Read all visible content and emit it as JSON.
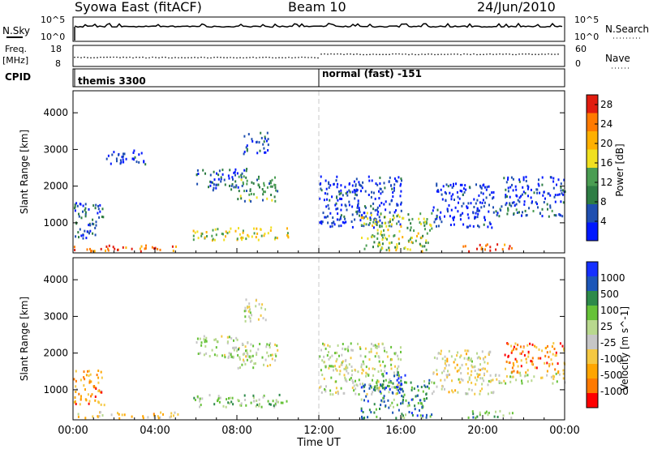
{
  "header": {
    "station": "Syowa East (fitACF)",
    "beam": "Beam 10",
    "date": "24/Jun/2010"
  },
  "panels": {
    "nsky": {
      "label": "N.Sky",
      "ticks": [
        "10^5",
        "10^0"
      ],
      "right_label": "N.Search",
      "right_ticks": [
        "10^5",
        "10^0"
      ]
    },
    "freq": {
      "label": "Freq.",
      "unit": "[MHz]",
      "ticks": [
        "18",
        "8"
      ],
      "right_label": "Nave",
      "right_ticks": [
        "60",
        "0"
      ]
    },
    "cpid": {
      "label": "CPID",
      "segments": [
        {
          "start_hour": 0,
          "text": "themis 3300"
        },
        {
          "start_hour": 12,
          "text": "normal (fast) -151"
        }
      ]
    }
  },
  "colors": {
    "power_scale": [
      "#0018ff",
      "#1f4fb0",
      "#2e7d44",
      "#4a9d52",
      "#f0e020",
      "#ffb000",
      "#ff7a00",
      "#e11c0f"
    ],
    "velocity_scale": [
      "#ff0000",
      "#ff7a00",
      "#ffa500",
      "#f5c842",
      "#c6c6c6",
      "#b8d88e",
      "#66c238",
      "#2d8a4a",
      "#1c56b8",
      "#1530ff"
    ]
  },
  "chart_data": [
    {
      "type": "heatmap",
      "title": "",
      "ylabel": "Slant Range [km]",
      "xlabel": "",
      "xlim": [
        0,
        24
      ],
      "ylim": [
        180,
        4600
      ],
      "yticks": [
        "1000",
        "2000",
        "3000",
        "4000"
      ],
      "colorbar": {
        "label": "Power [dB]",
        "ticks": [
          "4",
          "8",
          "12",
          "16",
          "20",
          "24",
          "28"
        ],
        "range": [
          0,
          30
        ]
      },
      "regions": [
        {
          "t0": 0.0,
          "t1": 5.2,
          "r0": 250,
          "r1": 420,
          "level": 0.85
        },
        {
          "t0": 0.0,
          "t1": 1.5,
          "r0": 600,
          "r1": 1600,
          "level": 0.2
        },
        {
          "t0": 1.5,
          "t1": 3.5,
          "r0": 2600,
          "r1": 3000,
          "level": 0.1
        },
        {
          "t0": 5.8,
          "t1": 10.5,
          "r0": 550,
          "r1": 900,
          "level": 0.55
        },
        {
          "t0": 6.0,
          "t1": 8.5,
          "r0": 1900,
          "r1": 2500,
          "level": 0.2
        },
        {
          "t0": 8.0,
          "t1": 10.0,
          "r0": 1600,
          "r1": 2300,
          "level": 0.35
        },
        {
          "t0": 8.3,
          "t1": 9.5,
          "r0": 2900,
          "r1": 3500,
          "level": 0.15
        },
        {
          "t0": 12.0,
          "t1": 16.0,
          "r0": 900,
          "r1": 2300,
          "level": 0.12
        },
        {
          "t0": 14.0,
          "t1": 17.5,
          "r0": 250,
          "r1": 1300,
          "level": 0.5
        },
        {
          "t0": 17.5,
          "t1": 20.5,
          "r0": 900,
          "r1": 2100,
          "level": 0.1
        },
        {
          "t0": 19.0,
          "t1": 21.5,
          "r0": 250,
          "r1": 450,
          "level": 0.9
        },
        {
          "t0": 20.5,
          "t1": 24.0,
          "r0": 1200,
          "r1": 1500,
          "level": 0.25
        },
        {
          "t0": 21.0,
          "t1": 24.0,
          "r0": 1500,
          "r1": 2300,
          "level": 0.12
        }
      ]
    },
    {
      "type": "heatmap",
      "title": "",
      "ylabel": "Slant Range [km]",
      "xlabel": "Time UT",
      "xlim": [
        0,
        24
      ],
      "ylim": [
        180,
        4600
      ],
      "xticks": [
        "00:00",
        "04:00",
        "08:00",
        "12:00",
        "16:00",
        "20:00",
        "00:00"
      ],
      "yticks": [
        "1000",
        "2000",
        "3000",
        "4000"
      ],
      "colorbar": {
        "label": "Velocity [m s^-1]",
        "ticks": [
          "1000",
          "500",
          "100",
          "25",
          "-25",
          "-100",
          "-500",
          "-1000"
        ]
      },
      "regions": [
        {
          "t0": 0.0,
          "t1": 5.2,
          "r0": 250,
          "r1": 420,
          "level": 0.35
        },
        {
          "t0": 0.0,
          "t1": 1.5,
          "r0": 600,
          "r1": 1600,
          "level": 0.25
        },
        {
          "t0": 5.8,
          "t1": 10.5,
          "r0": 550,
          "r1": 900,
          "level": 0.6
        },
        {
          "t0": 6.0,
          "t1": 8.5,
          "r0": 1900,
          "r1": 2500,
          "level": 0.55
        },
        {
          "t0": 8.0,
          "t1": 10.0,
          "r0": 1600,
          "r1": 2300,
          "level": 0.5
        },
        {
          "t0": 8.3,
          "t1": 9.5,
          "r0": 2900,
          "r1": 3500,
          "level": 0.45
        },
        {
          "t0": 12.0,
          "t1": 16.0,
          "r0": 900,
          "r1": 2300,
          "level": 0.5
        },
        {
          "t0": 14.0,
          "t1": 17.5,
          "r0": 250,
          "r1": 1300,
          "level": 0.75
        },
        {
          "t0": 15.0,
          "t1": 16.2,
          "r0": 1000,
          "r1": 1500,
          "level": 0.9
        },
        {
          "t0": 17.5,
          "t1": 20.5,
          "r0": 900,
          "r1": 2100,
          "level": 0.45
        },
        {
          "t0": 19.0,
          "t1": 21.5,
          "r0": 250,
          "r1": 450,
          "level": 0.65
        },
        {
          "t0": 20.5,
          "t1": 24.0,
          "r0": 1200,
          "r1": 1500,
          "level": 0.5
        },
        {
          "t0": 21.0,
          "t1": 24.0,
          "r0": 1500,
          "r1": 2300,
          "level": 0.2
        }
      ]
    }
  ]
}
